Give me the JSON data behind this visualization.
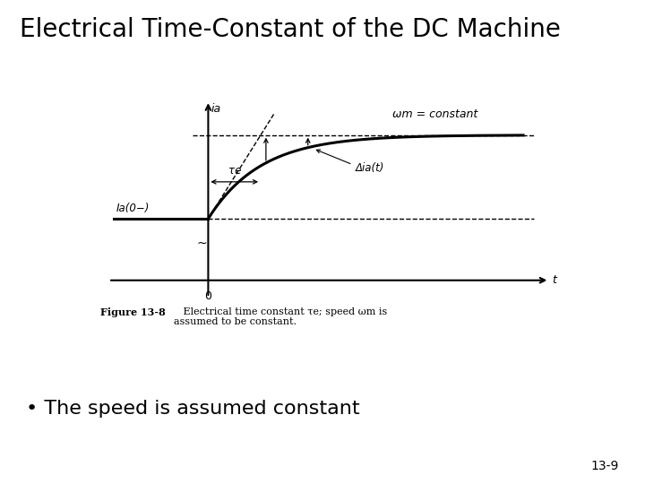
{
  "title": "Electrical Time-Constant of the DC Machine",
  "title_fontsize": 20,
  "bullet_text": "• The speed is assumed constant",
  "bullet_fontsize": 16,
  "page_number": "13-9",
  "background_color": "#ffffff",
  "figure_caption_bold": "Figure 13-8",
  "figure_caption_rest": "   Electrical time constant τe; speed ωm is assumed to be constant.",
  "omega_label": "ωm = constant",
  "ia_label": "ia",
  "t_label": "t",
  "zero_label": "0",
  "Ia0_label": "Ia(0−)",
  "tau_e_label": "τe",
  "delta_ia_label": "Δia(t)",
  "Ia0": 0.32,
  "Ia_final": 1.0,
  "tau": 1.0
}
